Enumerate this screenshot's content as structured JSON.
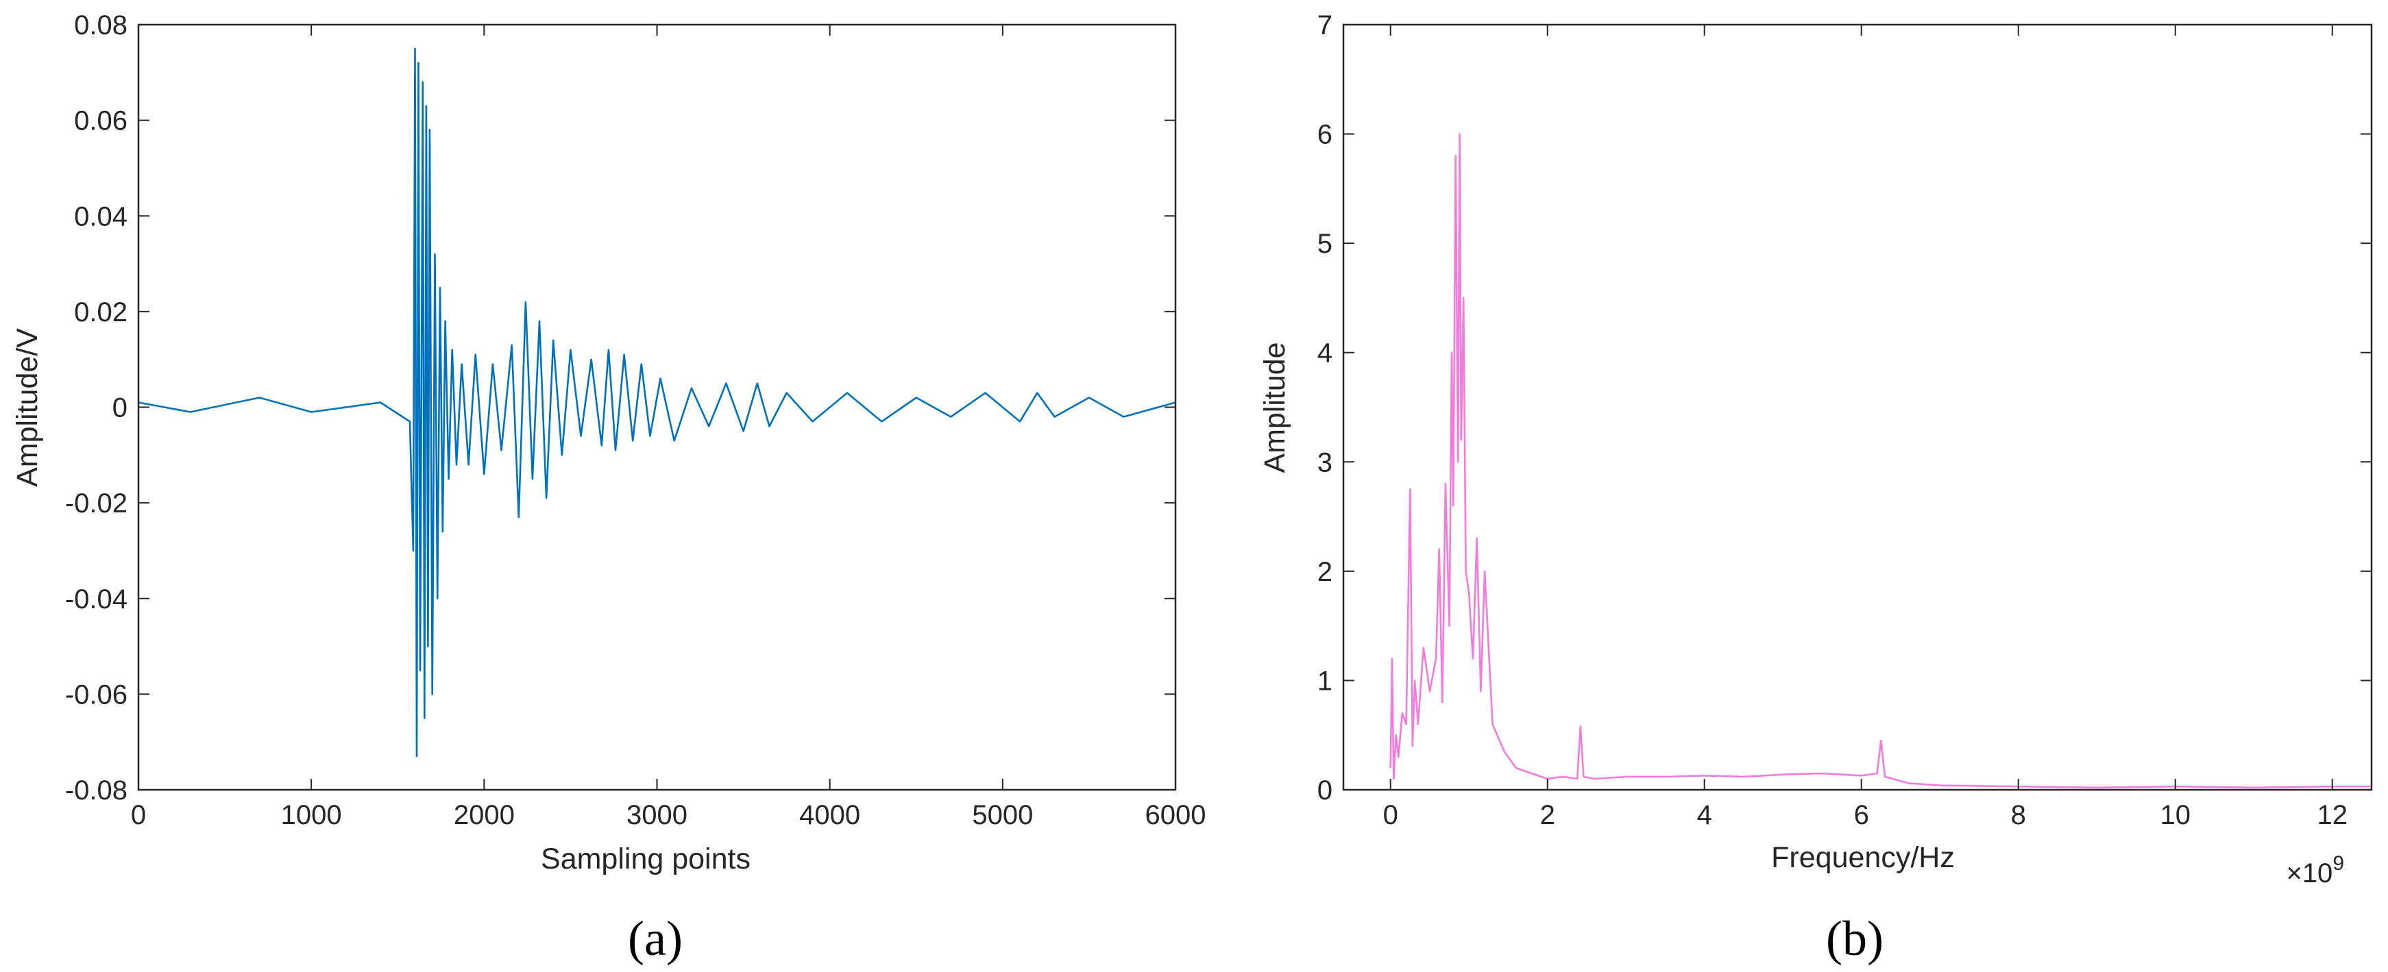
{
  "chart_data": [
    {
      "panel": "a",
      "type": "line",
      "caption": "(a)",
      "xlabel": "Sampling points",
      "ylabel": "Amplitude/V",
      "xlim": [
        0,
        6000
      ],
      "ylim": [
        -0.08,
        0.08
      ],
      "xticks": [
        0,
        1000,
        2000,
        3000,
        4000,
        5000,
        6000
      ],
      "xtick_labels": [
        "0",
        "1000",
        "2000",
        "3000",
        "4000",
        "5000",
        "6000"
      ],
      "yticks": [
        -0.08,
        -0.06,
        -0.04,
        -0.02,
        0,
        0.02,
        0.04,
        0.06,
        0.08
      ],
      "ytick_labels": [
        "-0.08",
        "-0.06",
        "-0.04",
        "-0.02",
        "0",
        "0.02",
        "0.04",
        "0.06",
        "0.08"
      ],
      "grid": false,
      "series": [
        {
          "color": "#0072bd",
          "x": [
            0,
            300,
            700,
            1000,
            1400,
            1570,
            1590,
            1600,
            1610,
            1620,
            1630,
            1645,
            1655,
            1665,
            1675,
            1685,
            1700,
            1715,
            1730,
            1745,
            1760,
            1775,
            1795,
            1815,
            1840,
            1870,
            1910,
            1950,
            2000,
            2050,
            2100,
            2160,
            2200,
            2240,
            2280,
            2320,
            2360,
            2400,
            2450,
            2500,
            2560,
            2620,
            2680,
            2720,
            2760,
            2810,
            2860,
            2910,
            2960,
            3020,
            3100,
            3200,
            3300,
            3400,
            3500,
            3580,
            3650,
            3750,
            3900,
            4100,
            4300,
            4500,
            4700,
            4900,
            5100,
            5200,
            5300,
            5500,
            5700,
            6000
          ],
          "y": [
            0.001,
            -0.001,
            0.002,
            -0.001,
            0.001,
            -0.003,
            -0.03,
            0.075,
            -0.073,
            0.072,
            -0.055,
            0.068,
            -0.065,
            0.063,
            -0.05,
            0.058,
            -0.06,
            0.032,
            -0.04,
            0.025,
            -0.026,
            0.018,
            -0.015,
            0.012,
            -0.012,
            0.009,
            -0.012,
            0.011,
            -0.014,
            0.009,
            -0.009,
            0.013,
            -0.023,
            0.022,
            -0.015,
            0.018,
            -0.019,
            0.014,
            -0.01,
            0.012,
            -0.006,
            0.01,
            -0.008,
            0.012,
            -0.009,
            0.011,
            -0.007,
            0.009,
            -0.006,
            0.006,
            -0.007,
            0.004,
            -0.004,
            0.005,
            -0.005,
            0.005,
            -0.004,
            0.003,
            -0.003,
            0.003,
            -0.003,
            0.002,
            -0.002,
            0.003,
            -0.003,
            0.003,
            -0.002,
            0.002,
            -0.002,
            0.001
          ]
        }
      ]
    },
    {
      "panel": "b",
      "type": "line",
      "caption": "(b)",
      "xlabel": "Frequency/Hz",
      "ylabel": "Amplitude",
      "x_exponent": "×10",
      "x_exponent_power": "9",
      "xlim": [
        -0.6,
        12.5
      ],
      "ylim": [
        0,
        7
      ],
      "xticks": [
        0,
        2,
        4,
        6,
        8,
        10,
        12
      ],
      "xtick_labels": [
        "0",
        "2",
        "4",
        "6",
        "8",
        "10",
        "12"
      ],
      "yticks": [
        0,
        1,
        2,
        3,
        4,
        5,
        6,
        7
      ],
      "ytick_labels": [
        "0",
        "1",
        "2",
        "3",
        "4",
        "5",
        "6",
        "7"
      ],
      "grid": false,
      "series": [
        {
          "color": "#f27cdc",
          "x": [
            0.0,
            0.02,
            0.04,
            0.07,
            0.1,
            0.15,
            0.2,
            0.25,
            0.28,
            0.31,
            0.35,
            0.42,
            0.5,
            0.58,
            0.62,
            0.66,
            0.7,
            0.75,
            0.78,
            0.8,
            0.83,
            0.86,
            0.88,
            0.9,
            0.93,
            0.96,
            1.0,
            1.05,
            1.1,
            1.15,
            1.2,
            1.3,
            1.45,
            1.6,
            1.8,
            2.0,
            2.2,
            2.38,
            2.42,
            2.46,
            2.6,
            3.0,
            3.5,
            4.0,
            4.5,
            5.0,
            5.5,
            6.0,
            6.2,
            6.25,
            6.3,
            6.6,
            7.0,
            8.0,
            9.0,
            10.0,
            11.0,
            12.0,
            12.5
          ],
          "y": [
            0.2,
            1.2,
            0.1,
            0.5,
            0.3,
            0.7,
            0.6,
            2.75,
            0.4,
            1.0,
            0.6,
            1.3,
            0.9,
            1.2,
            2.2,
            0.8,
            2.8,
            1.5,
            4.0,
            2.6,
            5.8,
            3.0,
            6.0,
            3.2,
            4.5,
            2.0,
            1.8,
            1.2,
            2.3,
            0.9,
            2.0,
            0.6,
            0.35,
            0.2,
            0.15,
            0.1,
            0.12,
            0.1,
            0.58,
            0.12,
            0.1,
            0.12,
            0.12,
            0.13,
            0.12,
            0.14,
            0.15,
            0.13,
            0.15,
            0.45,
            0.12,
            0.06,
            0.04,
            0.03,
            0.02,
            0.03,
            0.02,
            0.03,
            0.03
          ]
        }
      ]
    }
  ]
}
